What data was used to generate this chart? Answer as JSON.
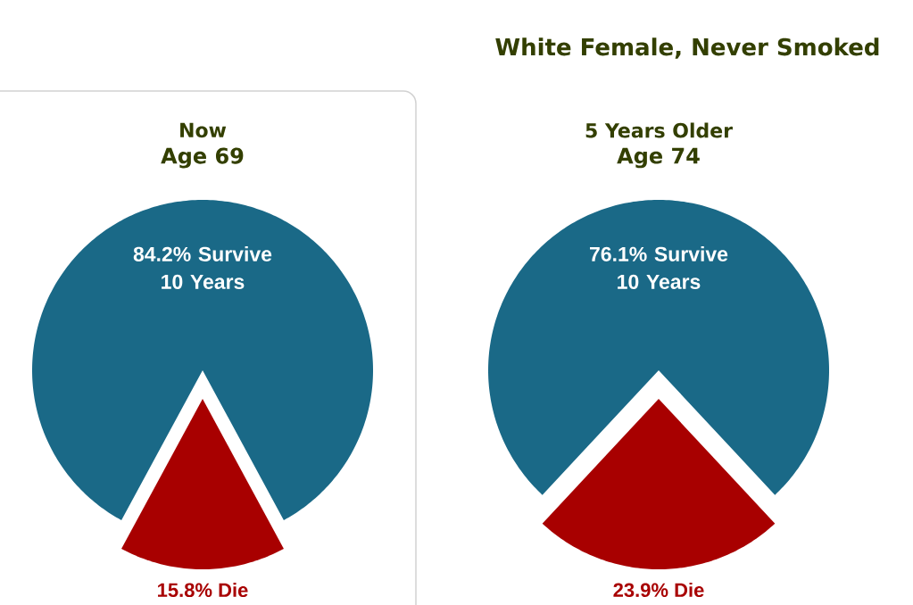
{
  "chart_data": [
    {
      "type": "pie",
      "title": "Now",
      "subtitle": "Age 69",
      "categories": [
        "84.2% Survive 10 Years",
        "15.8% Die"
      ],
      "values": [
        84.2,
        15.8
      ],
      "colors": [
        "#1a6987",
        "#a80000"
      ]
    },
    {
      "type": "pie",
      "title": "5 Years Older",
      "subtitle": "Age 74",
      "categories": [
        "76.1% Survive 10 Years",
        "23.9% Die"
      ],
      "values": [
        76.1,
        23.9
      ],
      "colors": [
        "#1a6987",
        "#a80000"
      ],
      "annotations": [
        "White Female, Never Smoked"
      ]
    }
  ]
}
